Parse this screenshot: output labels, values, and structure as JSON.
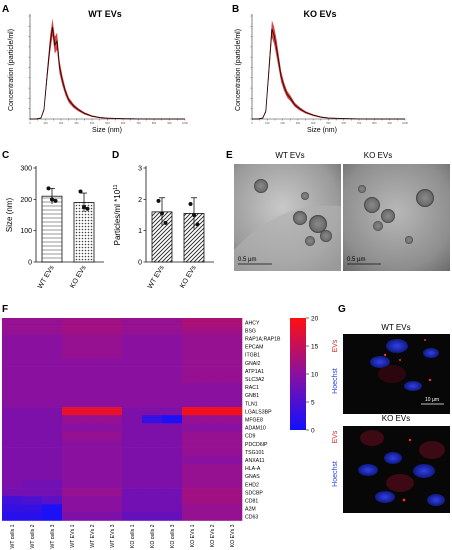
{
  "panels": {
    "A": {
      "letter": "A",
      "title": "WT EVs",
      "ylabel": "Concentration (particle/ml)",
      "xlabel": "Size (nm)"
    },
    "B": {
      "letter": "B",
      "title": "KO EVs",
      "ylabel": "Concentration (particle/ml)",
      "xlabel": "Size (nm)"
    },
    "C": {
      "letter": "C",
      "ylabel": "Size (nm)"
    },
    "D": {
      "letter": "D",
      "ylabel": "Particles/ml *10"
    },
    "E": {
      "letter": "E",
      "label_wt": "WT EVs",
      "label_ko": "KO EVs",
      "scalebar": "0.5 µm"
    },
    "F": {
      "letter": "F"
    },
    "G": {
      "letter": "G",
      "title_wt": "WT EVs",
      "title_ko": "KO EVs",
      "channel_red": "EVs",
      "channel_blue": "Hoechst",
      "scalebar": "10 µm"
    }
  },
  "colors": {
    "red": "#d42020",
    "dark": "#3a0a0a",
    "heat_high": "#ff1010",
    "heat_low": "#1010ff",
    "heat_mid": "#8a1aa8"
  },
  "chart_data": [
    {
      "panel": "A",
      "type": "line",
      "title": "WT EVs",
      "xlabel": "Size (nm)",
      "ylabel": "Concentration (particle/ml)",
      "xlim": [
        0,
        1000
      ],
      "x": [
        0,
        40,
        70,
        90,
        110,
        130,
        145,
        160,
        175,
        190,
        210,
        230,
        250,
        280,
        310,
        350,
        400,
        450,
        500,
        600,
        700,
        800,
        900,
        1000
      ],
      "values": [
        0,
        0,
        0.01,
        0.1,
        0.45,
        0.8,
        0.97,
        0.78,
        0.82,
        0.55,
        0.4,
        0.28,
        0.2,
        0.14,
        0.1,
        0.06,
        0.03,
        0.015,
        0.008,
        0.003,
        0.001,
        0,
        0,
        0
      ]
    },
    {
      "panel": "B",
      "type": "line",
      "title": "KO EVs",
      "xlabel": "Size (nm)",
      "ylabel": "Concentration (particle/ml)",
      "xlim": [
        0,
        1000
      ],
      "x": [
        0,
        40,
        70,
        90,
        110,
        130,
        145,
        160,
        175,
        190,
        210,
        230,
        250,
        280,
        310,
        350,
        400,
        450,
        500,
        600,
        700,
        800,
        900,
        1000
      ],
      "values": [
        0,
        0,
        0.01,
        0.08,
        0.5,
        0.95,
        0.88,
        0.75,
        0.6,
        0.45,
        0.34,
        0.26,
        0.22,
        0.15,
        0.11,
        0.07,
        0.04,
        0.02,
        0.01,
        0.004,
        0.001,
        0,
        0,
        0
      ]
    },
    {
      "panel": "C",
      "type": "bar",
      "ylabel": "Size (nm)",
      "ylim": [
        0,
        300
      ],
      "categories": [
        "WT EVs",
        "KO EVs"
      ],
      "values": [
        210,
        190
      ],
      "errors": [
        25,
        30
      ],
      "points": [
        [
          235,
          200,
          195
        ],
        [
          225,
          175,
          170
        ]
      ],
      "yticks": [
        "0",
        "100",
        "200",
        "300"
      ]
    },
    {
      "panel": "D",
      "type": "bar",
      "ylabel": "Particles/ml *10",
      "ylim": [
        0,
        3
      ],
      "categories": [
        "WT EVs",
        "KO EVs"
      ],
      "values": [
        1.6,
        1.55
      ],
      "errors": [
        0.45,
        0.5
      ],
      "points": [
        [
          1.95,
          1.55,
          1.25
        ],
        [
          1.85,
          1.5,
          1.2
        ]
      ],
      "yticks": [
        "0",
        "1",
        "2",
        "3"
      ]
    },
    {
      "panel": "F",
      "type": "heatmap",
      "scale": [
        0,
        20
      ],
      "cbar_ticks": [
        "20",
        "15",
        "10",
        "5",
        "0"
      ],
      "columns": [
        "WT cells 1",
        "WT cells 2",
        "WT cells 3",
        "WT EVs 1",
        "WT EVs 2",
        "WT EVs 3",
        "KO cells 1",
        "KO cells 2",
        "KO cells 3",
        "KO EVs 1",
        "KO EVs 2",
        "KO EVs 3"
      ],
      "rows": [
        "AHCY",
        "BSG",
        "RAP1A;RAP1B",
        "EPCAM",
        "ITGB1",
        "GNAI2",
        "ATP1A1",
        "SLC3A2",
        "RAC1",
        "GNB1",
        "TLN1",
        "LGALS3BP",
        "MFGE8",
        "ADAM10",
        "CD9",
        "PDCD6IP",
        "TSG101",
        "ANXA11",
        "HLA-A",
        "GNAS",
        "EHD2",
        "SDCBP",
        "CD81",
        "A2M",
        "CD63"
      ],
      "values": [
        [
          11,
          11,
          11,
          12,
          12,
          12,
          11,
          11,
          11,
          13,
          13,
          13
        ],
        [
          11,
          11,
          11,
          12,
          12,
          12,
          11,
          11,
          11,
          12,
          12,
          12
        ],
        [
          10,
          10,
          10,
          11,
          11,
          11,
          10,
          10,
          10,
          11,
          11,
          11
        ],
        [
          10,
          10,
          10,
          11,
          11,
          11,
          10,
          10,
          10,
          11,
          11,
          11
        ],
        [
          10,
          10,
          10,
          11,
          11,
          11,
          10,
          10,
          10,
          11,
          11,
          11
        ],
        [
          10,
          10,
          10,
          10,
          10,
          10,
          10,
          10,
          10,
          11,
          11,
          11
        ],
        [
          10,
          10,
          10,
          10,
          10,
          10,
          10,
          10,
          10,
          11,
          11,
          11
        ],
        [
          10,
          10,
          10,
          10,
          10,
          10,
          10,
          10,
          10,
          11,
          11,
          11
        ],
        [
          10,
          10,
          10,
          10,
          10,
          10,
          10,
          10,
          10,
          10,
          10,
          10
        ],
        [
          10,
          10,
          10,
          10,
          10,
          10,
          10,
          10,
          10,
          10,
          10,
          10
        ],
        [
          10,
          10,
          10,
          10,
          10,
          10,
          10,
          10,
          10,
          10,
          10,
          10
        ],
        [
          9,
          9,
          9,
          18,
          18,
          18,
          9,
          9,
          9,
          19,
          19,
          19
        ],
        [
          9,
          9,
          9,
          11,
          11,
          11,
          9,
          3,
          1,
          11,
          11,
          11
        ],
        [
          9,
          9,
          9,
          10,
          10,
          10,
          9,
          9,
          9,
          10,
          10,
          10
        ],
        [
          9,
          9,
          9,
          11,
          11,
          11,
          9,
          9,
          9,
          11,
          11,
          11
        ],
        [
          9,
          9,
          9,
          10,
          10,
          10,
          9,
          9,
          9,
          11,
          11,
          11
        ],
        [
          9,
          9,
          9,
          10,
          10,
          10,
          9,
          9,
          9,
          11,
          11,
          11
        ],
        [
          9,
          9,
          9,
          10,
          10,
          10,
          9,
          9,
          9,
          10,
          10,
          10
        ],
        [
          9,
          9,
          9,
          10,
          10,
          10,
          9,
          9,
          9,
          11,
          11,
          11
        ],
        [
          9,
          9,
          9,
          10,
          10,
          10,
          9,
          9,
          9,
          11,
          11,
          11
        ],
        [
          9,
          8,
          8,
          10,
          10,
          10,
          9,
          9,
          9,
          11,
          11,
          11
        ],
        [
          8,
          8,
          8,
          11,
          11,
          11,
          8,
          8,
          8,
          12,
          12,
          12
        ],
        [
          4,
          5,
          6,
          10,
          10,
          10,
          8,
          8,
          8,
          12,
          12,
          12
        ],
        [
          3,
          3,
          1,
          10,
          10,
          10,
          8,
          8,
          8,
          11,
          11,
          11
        ],
        [
          2,
          2,
          1,
          9,
          9,
          9,
          7,
          7,
          7,
          11,
          11,
          11
        ]
      ]
    }
  ]
}
